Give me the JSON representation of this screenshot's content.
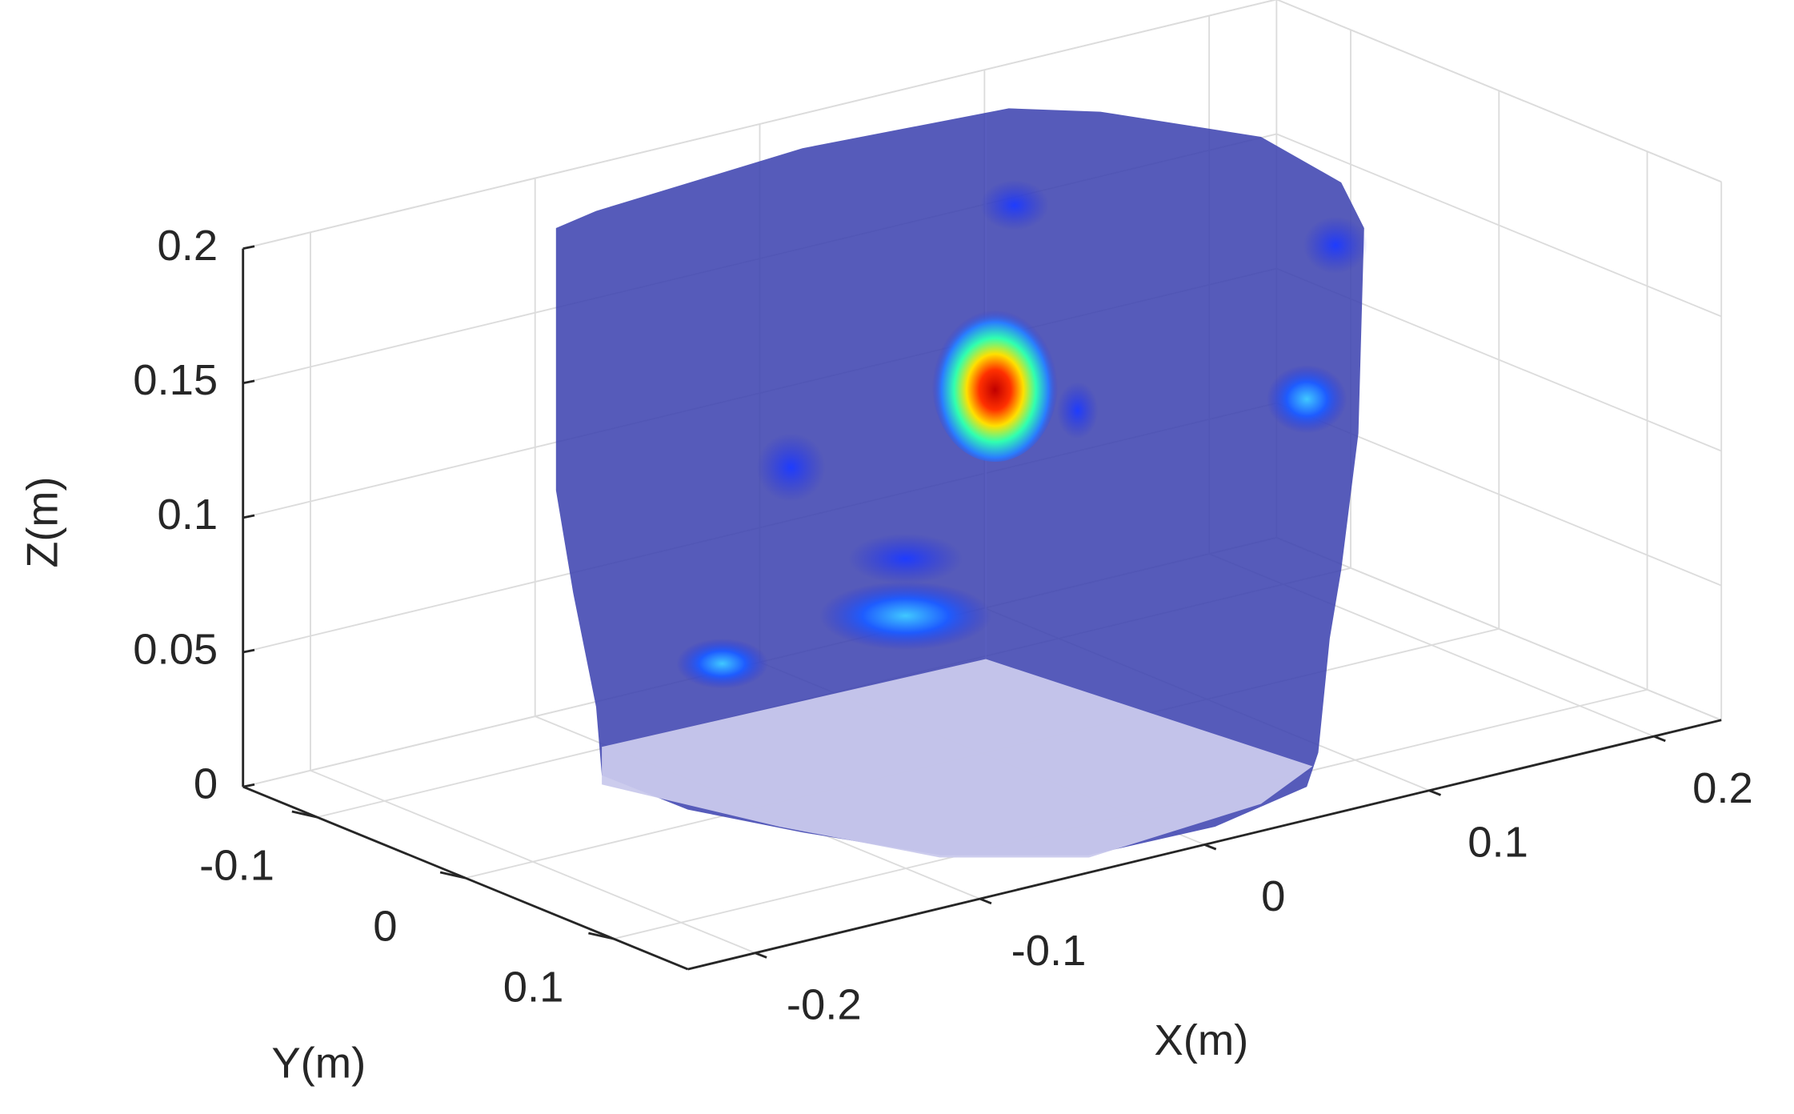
{
  "chart_data": {
    "type": "volume3d",
    "xlabel": "X(m)",
    "ylabel": "Y(m)",
    "zlabel": "Z(m)",
    "xlim": [
      -0.23,
      0.23
    ],
    "xticks": [
      -0.2,
      -0.1,
      0,
      0.1,
      0.2
    ],
    "ylim": [
      -0.15,
      0.15
    ],
    "yticks": [
      -0.1,
      0,
      0.1
    ],
    "zlim": [
      0,
      0.2
    ],
    "zticks": [
      0,
      0.05,
      0.1,
      0.15,
      0.2
    ],
    "grid": true
  }
}
